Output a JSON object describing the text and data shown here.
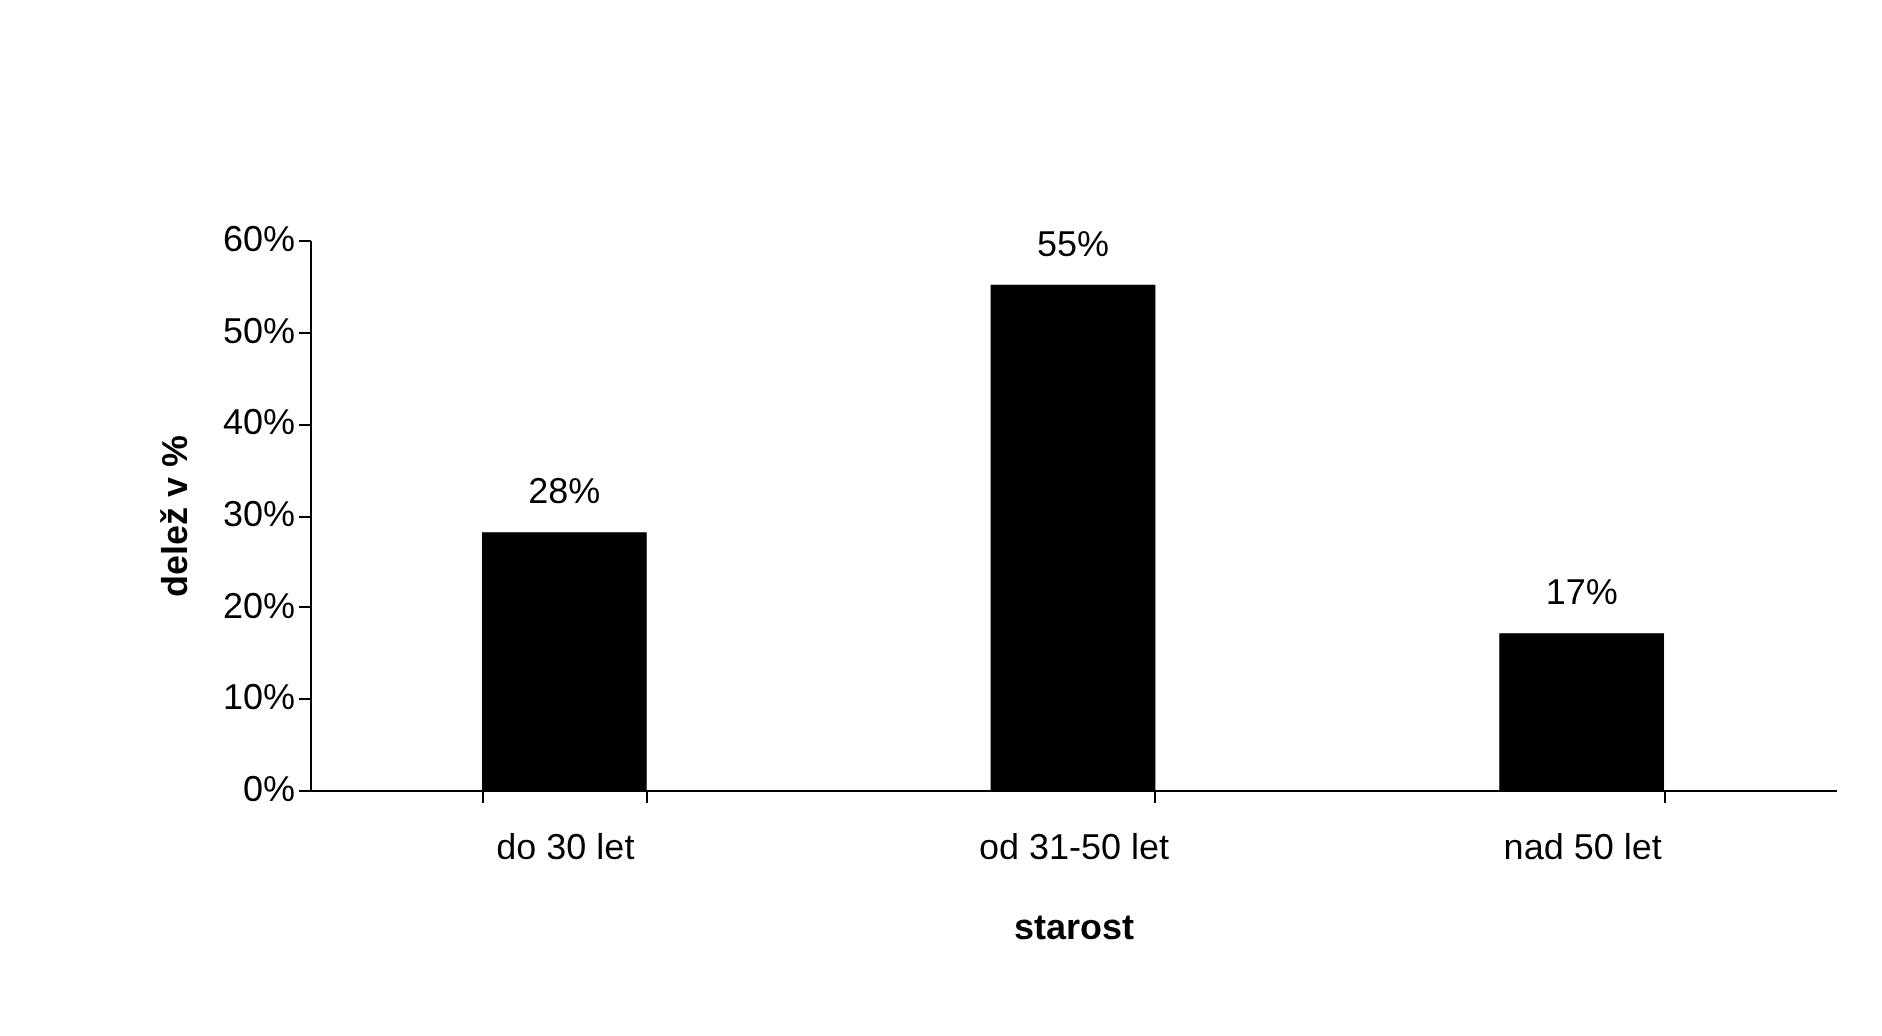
{
  "chart_data": {
    "type": "bar",
    "xlabel": "starost",
    "ylabel": "delež v %",
    "categories": [
      "do 30 let",
      "od 31-50 let",
      "nad 50 let"
    ],
    "series": [
      {
        "color": "#000000",
        "values": [
          28,
          55,
          17
        ],
        "value_labels": [
          "28%",
          "55%",
          "17%"
        ]
      }
    ],
    "ylim": [
      0,
      60
    ],
    "yticks": [
      {
        "value": 0,
        "label": "0%"
      },
      {
        "value": 10,
        "label": "10%"
      },
      {
        "value": 20,
        "label": "20%"
      },
      {
        "value": 30,
        "label": "30%"
      },
      {
        "value": 40,
        "label": "40%"
      },
      {
        "value": 50,
        "label": "50%"
      },
      {
        "value": 60,
        "label": "60%"
      }
    ],
    "grid": false
  }
}
